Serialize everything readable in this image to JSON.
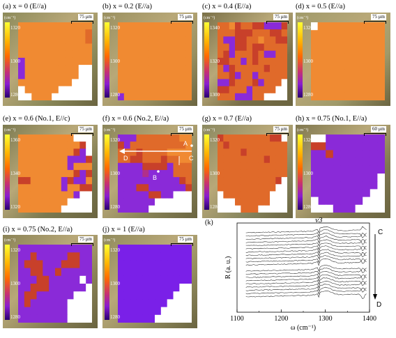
{
  "panels": [
    {
      "id": "a",
      "title": "(a) x = 0 (E//a)",
      "unit": "(cm⁻¹)",
      "ticks": [
        "1320",
        "1300",
        "1280"
      ],
      "scale": "75 μm"
    },
    {
      "id": "b",
      "title": "(b) x = 0.2 (E//a)",
      "unit": "(cm⁻¹)",
      "ticks": [
        "1320",
        "1300",
        "1280"
      ],
      "scale": "75 μm"
    },
    {
      "id": "c",
      "title": "(c) x = 0.4 (E//a)",
      "unit": "(cm⁻¹)",
      "ticks": [
        "1340",
        "1320",
        "1300"
      ],
      "scale": "75 μm"
    },
    {
      "id": "d",
      "title": "(d) x = 0.5 (E//a)",
      "unit": "(cm⁻¹)",
      "ticks": [
        "1320",
        "1300",
        "1280"
      ],
      "scale": "75 μm"
    },
    {
      "id": "e",
      "title": "(e) x = 0.6 (No.1, E//c)",
      "unit": "(cm⁻¹)",
      "ticks": [
        "1360",
        "1340",
        "1320"
      ],
      "scale": "75 μm"
    },
    {
      "id": "f",
      "title": "(f) x = 0.6 (No.2, E//a)",
      "unit": "(cm⁻¹)",
      "ticks": [
        "1320",
        "1300",
        "1280"
      ],
      "scale": "75 μm"
    },
    {
      "id": "g",
      "title": "(g) x = 0.7 (E//a)",
      "unit": "(cm⁻¹)",
      "ticks": [
        "1320",
        "1300",
        "1280"
      ],
      "scale": "75 μm"
    },
    {
      "id": "h",
      "title": "(h) x = 0.75 (No.1, E//a)",
      "unit": "(cm⁻¹)",
      "ticks": [
        "1320",
        "1300",
        "1280"
      ],
      "scale": "60 μm"
    },
    {
      "id": "i",
      "title": "(i) x = 0.75 (No.2, E//a)",
      "unit": "(cm⁻¹)",
      "ticks": [
        "1320",
        "1300",
        "1280"
      ],
      "scale": "75 μm"
    },
    {
      "id": "j",
      "title": "(j) x = 1 (E//a)",
      "unit": "(cm⁻¹)",
      "ticks": [
        "1320",
        "1300",
        "1280"
      ],
      "scale": "75 μm"
    }
  ],
  "annotations_f": {
    "A": "A",
    "B": "B",
    "C": "C",
    "D": "D"
  },
  "colors": {
    "yellow": "#f8c63a",
    "orange": "#f08a32",
    "darkorange": "#e06a2a",
    "red": "#c8402a",
    "magenta": "#b0308a",
    "purple": "#8a2ad8",
    "violet": "#7a20e8",
    "photo": "#8a8458"
  },
  "chart_data": {
    "type": "line",
    "title": "(k)",
    "peak_label": "ν3",
    "xlabel": "ω (cm⁻¹)",
    "ylabel": "R (a. u.)",
    "xlim": [
      1100,
      1400
    ],
    "xticks": [
      "1100",
      "1200",
      "1300",
      "1400"
    ],
    "arrow_top": "C",
    "arrow_bottom": "D",
    "series_count": 20,
    "peak_x": 1290
  }
}
